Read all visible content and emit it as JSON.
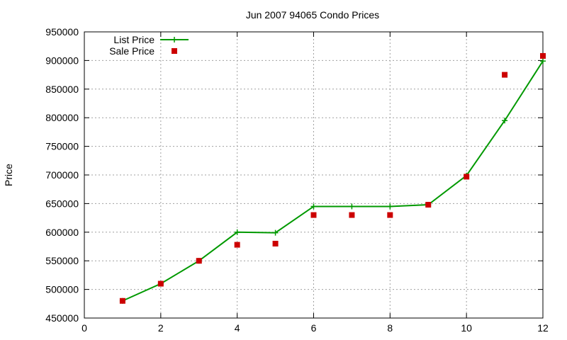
{
  "chart_data": {
    "type": "line",
    "title": "Jun 2007 94065 Condo Prices",
    "ylabel": "Price",
    "xlabel": "",
    "xlim": [
      0,
      12
    ],
    "ylim": [
      450000,
      950000
    ],
    "xticks": [
      0,
      2,
      4,
      6,
      8,
      10,
      12
    ],
    "yticks": [
      450000,
      500000,
      550000,
      600000,
      650000,
      700000,
      750000,
      800000,
      850000,
      900000,
      950000
    ],
    "grid": true,
    "legend_position": "top-left",
    "series": [
      {
        "name": "List Price",
        "style": "line-plus",
        "color": "#009900",
        "x": [
          1,
          2,
          3,
          4,
          5,
          6,
          7,
          8,
          9,
          10,
          11,
          12
        ],
        "y": [
          480000,
          510000,
          550000,
          600000,
          599000,
          645000,
          645000,
          645000,
          648000,
          699000,
          795000,
          899000
        ]
      },
      {
        "name": "Sale Price",
        "style": "square",
        "color": "#cc0000",
        "x": [
          1,
          2,
          3,
          4,
          5,
          6,
          7,
          8,
          9,
          10,
          11,
          12
        ],
        "y": [
          480000,
          510000,
          550000,
          578000,
          580000,
          630000,
          630000,
          630000,
          648000,
          697000,
          875000,
          908000
        ]
      }
    ]
  }
}
